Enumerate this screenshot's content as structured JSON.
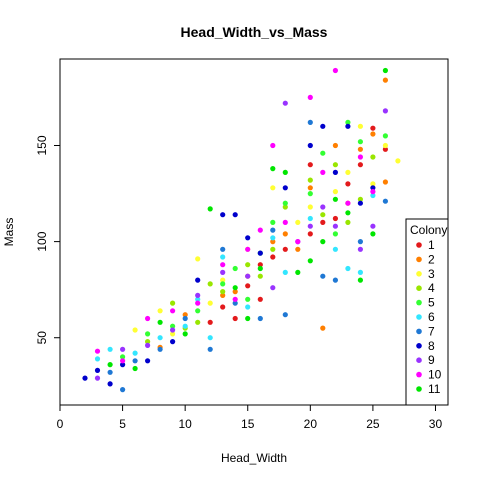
{
  "chart_data": {
    "type": "scatter",
    "title": "Head_Width_vs_Mass",
    "xlabel": "Head_Width",
    "ylabel": "Mass",
    "xlim": [
      0,
      31
    ],
    "ylim": [
      15,
      195
    ],
    "xticks": [
      0,
      5,
      10,
      15,
      20,
      25,
      30
    ],
    "yticks": [
      50,
      100,
      150
    ],
    "grid": false,
    "legend": {
      "title": "Colony",
      "position": "right",
      "entries": [
        {
          "label": "1",
          "color": "#e31a1c"
        },
        {
          "label": "2",
          "color": "#ff7f00"
        },
        {
          "label": "3",
          "color": "#ffff33"
        },
        {
          "label": "4",
          "color": "#99e600"
        },
        {
          "label": "5",
          "color": "#33ff33"
        },
        {
          "label": "6",
          "color": "#33e6ff"
        },
        {
          "label": "7",
          "color": "#1f78d4"
        },
        {
          "label": "8",
          "color": "#0000cc"
        },
        {
          "label": "9",
          "color": "#9933ff"
        },
        {
          "label": "10",
          "color": "#ff00ff"
        },
        {
          "label": "11",
          "color": "#00e600"
        }
      ]
    },
    "series": [
      {
        "name": "1",
        "color": "#e31a1c",
        "points": [
          [
            12,
            58
          ],
          [
            14,
            60
          ],
          [
            15,
            77
          ],
          [
            16,
            88
          ],
          [
            17,
            92
          ],
          [
            18,
            96
          ],
          [
            20,
            104
          ],
          [
            20,
            140
          ],
          [
            21,
            110
          ],
          [
            22,
            112
          ],
          [
            23,
            130
          ],
          [
            24,
            140
          ],
          [
            25,
            159
          ],
          [
            26,
            148
          ],
          [
            16,
            70
          ],
          [
            13,
            66
          ]
        ]
      },
      {
        "name": "2",
        "color": "#ff7f00",
        "points": [
          [
            8,
            45
          ],
          [
            10,
            62
          ],
          [
            13,
            72
          ],
          [
            15,
            82
          ],
          [
            17,
            100
          ],
          [
            18,
            104
          ],
          [
            20,
            128
          ],
          [
            21,
            55
          ],
          [
            22,
            150
          ],
          [
            23,
            120
          ],
          [
            24,
            148
          ],
          [
            25,
            156
          ],
          [
            26,
            131
          ],
          [
            26,
            184
          ],
          [
            19,
            96
          ],
          [
            14,
            74
          ]
        ]
      },
      {
        "name": "3",
        "color": "#ffff33",
        "points": [
          [
            6,
            54
          ],
          [
            8,
            64
          ],
          [
            11,
            91
          ],
          [
            13,
            80
          ],
          [
            15,
            96
          ],
          [
            17,
            128
          ],
          [
            19,
            110
          ],
          [
            20,
            118
          ],
          [
            22,
            126
          ],
          [
            23,
            136
          ],
          [
            24,
            160
          ],
          [
            25,
            130
          ],
          [
            26,
            150
          ],
          [
            27,
            142
          ],
          [
            12,
            68
          ],
          [
            9,
            52
          ]
        ]
      },
      {
        "name": "4",
        "color": "#99e600",
        "points": [
          [
            7,
            48
          ],
          [
            9,
            68
          ],
          [
            11,
            58
          ],
          [
            13,
            74
          ],
          [
            15,
            88
          ],
          [
            17,
            96
          ],
          [
            18,
            118
          ],
          [
            20,
            132
          ],
          [
            21,
            114
          ],
          [
            22,
            140
          ],
          [
            23,
            110
          ],
          [
            24,
            122
          ],
          [
            25,
            144
          ],
          [
            10,
            55
          ],
          [
            16,
            82
          ],
          [
            12,
            78
          ]
        ]
      },
      {
        "name": "5",
        "color": "#33ff33",
        "points": [
          [
            5,
            40
          ],
          [
            7,
            52
          ],
          [
            9,
            56
          ],
          [
            11,
            64
          ],
          [
            13,
            78
          ],
          [
            15,
            70
          ],
          [
            17,
            110
          ],
          [
            18,
            120
          ],
          [
            20,
            125
          ],
          [
            21,
            146
          ],
          [
            22,
            104
          ],
          [
            23,
            162
          ],
          [
            24,
            152
          ],
          [
            26,
            155
          ],
          [
            14,
            86
          ],
          [
            16,
            94
          ]
        ]
      },
      {
        "name": "6",
        "color": "#33e6ff",
        "points": [
          [
            3,
            39
          ],
          [
            4,
            44
          ],
          [
            6,
            42
          ],
          [
            8,
            50
          ],
          [
            10,
            56
          ],
          [
            12,
            50
          ],
          [
            13,
            92
          ],
          [
            15,
            66
          ],
          [
            17,
            102
          ],
          [
            18,
            84
          ],
          [
            20,
            112
          ],
          [
            22,
            96
          ],
          [
            23,
            86
          ],
          [
            24,
            84
          ],
          [
            25,
            124
          ],
          [
            11,
            70
          ]
        ]
      },
      {
        "name": "7",
        "color": "#1f78d4",
        "points": [
          [
            4,
            32
          ],
          [
            5,
            23
          ],
          [
            6,
            38
          ],
          [
            8,
            44
          ],
          [
            10,
            60
          ],
          [
            12,
            44
          ],
          [
            14,
            68
          ],
          [
            16,
            60
          ],
          [
            18,
            62
          ],
          [
            20,
            162
          ],
          [
            21,
            82
          ],
          [
            22,
            80
          ],
          [
            24,
            100
          ],
          [
            26,
            121
          ],
          [
            13,
            96
          ],
          [
            17,
            106
          ]
        ]
      },
      {
        "name": "8",
        "color": "#0000cc",
        "points": [
          [
            2,
            29
          ],
          [
            3,
            33
          ],
          [
            4,
            26
          ],
          [
            5,
            36
          ],
          [
            7,
            38
          ],
          [
            9,
            48
          ],
          [
            11,
            80
          ],
          [
            13,
            114
          ],
          [
            14,
            114
          ],
          [
            15,
            102
          ],
          [
            16,
            94
          ],
          [
            18,
            128
          ],
          [
            20,
            150
          ],
          [
            21,
            160
          ],
          [
            22,
            136
          ],
          [
            23,
            160
          ],
          [
            24,
            120
          ],
          [
            25,
            128
          ]
        ]
      },
      {
        "name": "9",
        "color": "#9933ff",
        "points": [
          [
            3,
            29
          ],
          [
            5,
            44
          ],
          [
            7,
            46
          ],
          [
            9,
            54
          ],
          [
            11,
            72
          ],
          [
            13,
            84
          ],
          [
            15,
            82
          ],
          [
            17,
            76
          ],
          [
            18,
            172
          ],
          [
            19,
            100
          ],
          [
            20,
            108
          ],
          [
            21,
            118
          ],
          [
            22,
            108
          ],
          [
            24,
            96
          ],
          [
            25,
            108
          ],
          [
            26,
            168
          ]
        ]
      },
      {
        "name": "10",
        "color": "#ff00ff",
        "points": [
          [
            3,
            43
          ],
          [
            5,
            38
          ],
          [
            7,
            60
          ],
          [
            9,
            64
          ],
          [
            11,
            68
          ],
          [
            13,
            88
          ],
          [
            15,
            96
          ],
          [
            17,
            150
          ],
          [
            18,
            110
          ],
          [
            20,
            175
          ],
          [
            21,
            136
          ],
          [
            22,
            189
          ],
          [
            23,
            120
          ],
          [
            24,
            144
          ],
          [
            25,
            126
          ],
          [
            16,
            106
          ],
          [
            19,
            100
          ],
          [
            14,
            70
          ]
        ]
      },
      {
        "name": "11",
        "color": "#00e600",
        "points": [
          [
            4,
            36
          ],
          [
            6,
            34
          ],
          [
            8,
            58
          ],
          [
            10,
            52
          ],
          [
            12,
            117
          ],
          [
            14,
            76
          ],
          [
            16,
            86
          ],
          [
            17,
            138
          ],
          [
            18,
            136
          ],
          [
            20,
            90
          ],
          [
            21,
            100
          ],
          [
            22,
            122
          ],
          [
            23,
            115
          ],
          [
            24,
            80
          ],
          [
            25,
            104
          ],
          [
            26,
            189
          ],
          [
            19,
            84
          ],
          [
            15,
            60
          ]
        ]
      }
    ]
  }
}
